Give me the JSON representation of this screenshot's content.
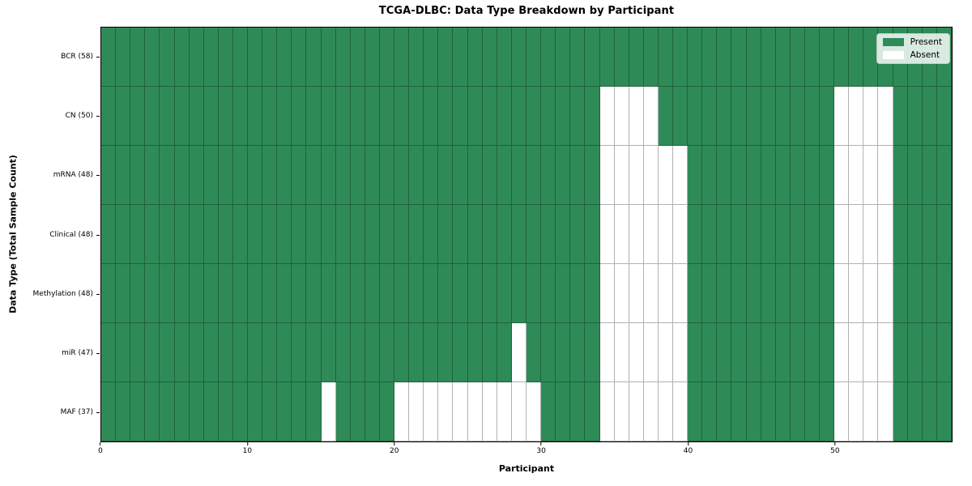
{
  "colors": {
    "present": "#2e8b57",
    "absent": "#ffffff"
  },
  "chart_data": {
    "type": "heatmap",
    "title": "TCGA-DLBC: Data Type Breakdown by Participant",
    "xlabel": "Participant",
    "ylabel": "Data Type (Total Sample Count)",
    "x_range": [
      0,
      58
    ],
    "n_participants": 58,
    "x_ticks": [
      0,
      10,
      20,
      30,
      40,
      50
    ],
    "legend": [
      {
        "label": "Present",
        "color_key": "present"
      },
      {
        "label": "Absent",
        "color_key": "absent"
      }
    ],
    "legend_position": "upper right",
    "grid": true,
    "rows": [
      {
        "label": "BCR (58)",
        "data_type": "BCR",
        "present_count": 58,
        "absent_participants": []
      },
      {
        "label": "CN (50)",
        "data_type": "CN",
        "present_count": 50,
        "absent_participants": [
          34,
          35,
          36,
          37,
          50,
          51,
          52,
          53
        ]
      },
      {
        "label": "mRNA (48)",
        "data_type": "mRNA",
        "present_count": 48,
        "absent_participants": [
          34,
          35,
          36,
          37,
          38,
          39,
          50,
          51,
          52,
          53
        ]
      },
      {
        "label": "Clinical (48)",
        "data_type": "Clinical",
        "present_count": 48,
        "absent_participants": [
          34,
          35,
          36,
          37,
          38,
          39,
          50,
          51,
          52,
          53
        ]
      },
      {
        "label": "Methylation (48)",
        "data_type": "Methylation",
        "present_count": 48,
        "absent_participants": [
          34,
          35,
          36,
          37,
          38,
          39,
          50,
          51,
          52,
          53
        ]
      },
      {
        "label": "miR (47)",
        "data_type": "miR",
        "present_count": 47,
        "absent_participants": [
          28,
          34,
          35,
          36,
          37,
          38,
          39,
          50,
          51,
          52,
          53
        ]
      },
      {
        "label": "MAF (37)",
        "data_type": "MAF",
        "present_count": 37,
        "absent_participants": [
          15,
          20,
          21,
          22,
          23,
          24,
          25,
          26,
          27,
          28,
          29,
          34,
          35,
          36,
          37,
          38,
          39,
          50,
          51,
          52,
          53
        ]
      }
    ]
  }
}
